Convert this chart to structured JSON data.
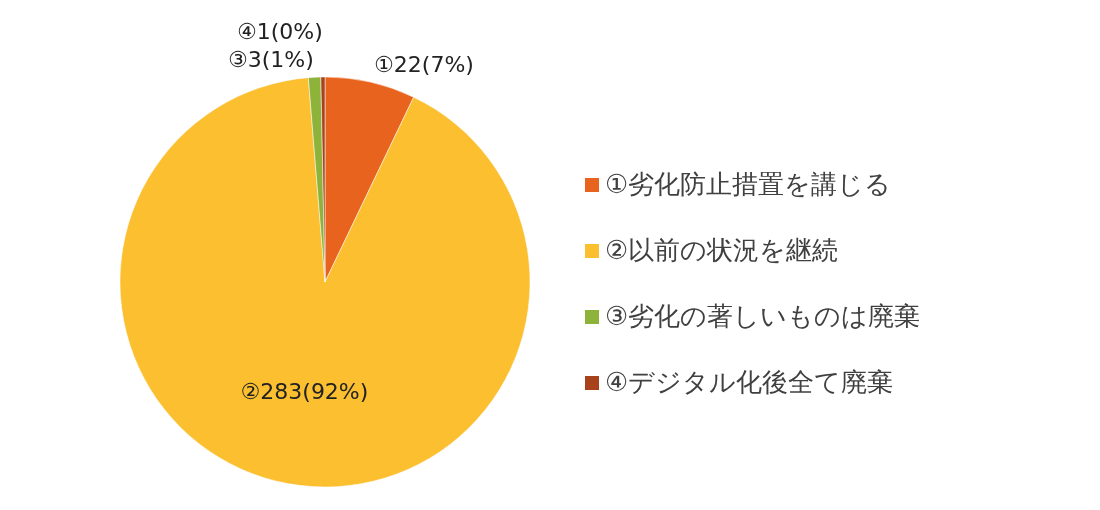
{
  "chart_data": {
    "type": "pie",
    "categories": [
      "①劣化防止措置を講じる",
      "②以前の状況を継続",
      "③劣化の著しいものは廃棄",
      "④デジタル化後全て廃棄"
    ],
    "values": [
      22,
      283,
      3,
      1
    ],
    "colors": [
      "#e8641e",
      "#fbbf2f",
      "#8db33a",
      "#a8421c"
    ],
    "value_labels": [
      "①22(7%)",
      "②283(92%)",
      "③3(1%)",
      "④1(0%)"
    ],
    "legend": "right"
  }
}
